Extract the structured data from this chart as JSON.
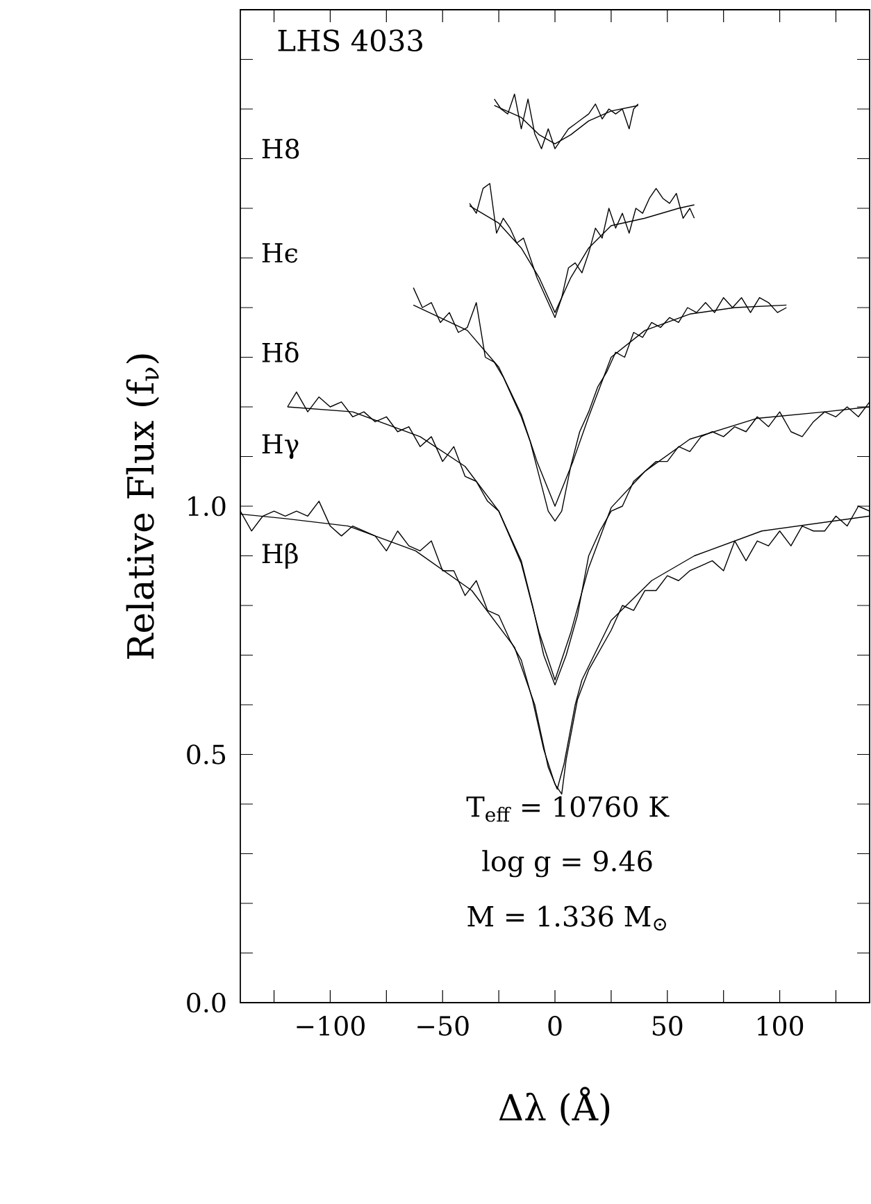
{
  "chart_data": {
    "type": "line",
    "title": "LHS 4033",
    "xlabel": "Δλ (Å)",
    "ylabel": "Relative Flux (f$_{ν}$)",
    "xlim": [
      -140,
      140
    ],
    "ylim": [
      0,
      2.0
    ],
    "xticks": [
      {
        "value": -125,
        "label": null
      },
      {
        "value": -100,
        "label": "−100"
      },
      {
        "value": -75,
        "label": null
      },
      {
        "value": -50,
        "label": "−50"
      },
      {
        "value": -25,
        "label": null
      },
      0,
      {
        "value": 25,
        "label": null
      },
      50,
      {
        "value": 75,
        "label": null
      },
      100,
      {
        "value": 125,
        "label": null
      }
    ],
    "yticks": [
      {
        "value": 0,
        "label": "0.0"
      },
      {
        "value": 0.1,
        "label": null
      },
      {
        "value": 0.2,
        "label": null
      },
      {
        "value": 0.3,
        "label": null
      },
      {
        "value": 0.4,
        "label": null
      },
      0.5,
      {
        "value": 0.6,
        "label": null
      },
      {
        "value": 0.7,
        "label": null
      },
      {
        "value": 0.8,
        "label": null
      },
      {
        "value": 0.9,
        "label": null
      },
      {
        "value": 1,
        "label": "1.0"
      },
      {
        "value": 1.1,
        "label": null
      },
      {
        "value": 1.2,
        "label": null
      },
      {
        "value": 1.3,
        "label": null
      },
      {
        "value": 1.4,
        "label": null
      },
      {
        "value": 1.5,
        "label": null
      },
      {
        "value": 1.6,
        "label": null
      },
      {
        "value": 1.7,
        "label": null
      },
      {
        "value": 1.8,
        "label": null
      },
      {
        "value": 1.9,
        "label": null
      }
    ],
    "marker": "none",
    "series": [
      {
        "color": "#000000",
        "x": [
          -140,
          -135,
          -130,
          -125,
          -120,
          -115,
          -110,
          -105,
          -100,
          -95,
          -90,
          -85,
          -80,
          -75,
          -70,
          -65,
          -60,
          -55,
          -50,
          -45,
          -40,
          -35,
          -30,
          -25,
          -20,
          -15,
          -10,
          -5,
          0,
          3,
          5,
          10,
          15,
          20,
          25,
          30,
          35,
          40,
          45,
          50,
          55,
          60,
          65,
          70,
          75,
          80,
          85,
          90,
          95,
          100,
          105,
          110,
          115,
          120,
          125,
          130,
          135,
          140
        ],
        "values": [
          0.99,
          0.95,
          0.98,
          0.99,
          0.98,
          0.99,
          0.98,
          1.01,
          0.96,
          0.94,
          0.96,
          0.95,
          0.94,
          0.91,
          0.95,
          0.92,
          0.91,
          0.93,
          0.87,
          0.87,
          0.82,
          0.85,
          0.79,
          0.78,
          0.73,
          0.69,
          0.61,
          0.51,
          0.44,
          0.42,
          0.49,
          0.61,
          0.67,
          0.71,
          0.75,
          0.8,
          0.79,
          0.83,
          0.83,
          0.86,
          0.85,
          0.87,
          0.88,
          0.89,
          0.87,
          0.93,
          0.89,
          0.93,
          0.92,
          0.95,
          0.92,
          0.96,
          0.95,
          0.95,
          0.98,
          0.96,
          1.0,
          0.99
        ]
      },
      {
        "color": "#000000",
        "x": [
          -140,
          -120,
          -92,
          -62,
          -37,
          -18,
          -9,
          -3,
          1,
          4,
          9,
          12,
          25,
          43,
          62,
          92,
          140
        ],
        "values": [
          0.984,
          0.975,
          0.96,
          0.91,
          0.83,
          0.716,
          0.6,
          0.474,
          0.43,
          0.48,
          0.6,
          0.65,
          0.77,
          0.85,
          0.9,
          0.95,
          0.98
        ]
      },
      {
        "color": "#000000",
        "x": [
          -119,
          -115,
          -110,
          -105,
          -100,
          -95,
          -90,
          -85,
          -80,
          -75,
          -70,
          -65,
          -60,
          -55,
          -50,
          -45,
          -40,
          -35,
          -30,
          -25,
          -20,
          -15,
          -10,
          -5,
          0,
          5,
          10,
          15,
          20,
          25,
          30,
          35,
          40,
          45,
          50,
          55,
          60,
          65,
          70,
          75,
          80,
          85,
          90,
          95,
          100,
          105,
          110,
          115,
          120,
          125,
          130,
          135,
          140
        ],
        "values": [
          1.2,
          1.23,
          1.19,
          1.22,
          1.2,
          1.21,
          1.18,
          1.19,
          1.17,
          1.18,
          1.15,
          1.16,
          1.12,
          1.14,
          1.09,
          1.12,
          1.06,
          1.05,
          1.01,
          0.99,
          0.94,
          0.89,
          0.8,
          0.7,
          0.64,
          0.7,
          0.78,
          0.9,
          0.95,
          0.99,
          1.0,
          1.05,
          1.07,
          1.09,
          1.09,
          1.12,
          1.11,
          1.14,
          1.15,
          1.14,
          1.16,
          1.15,
          1.18,
          1.16,
          1.19,
          1.15,
          1.14,
          1.17,
          1.19,
          1.18,
          1.2,
          1.18,
          1.21
        ]
      },
      {
        "color": "#000000",
        "x": [
          -119,
          -90,
          -60,
          -40,
          -25,
          -15,
          -7,
          0,
          7,
          15,
          25,
          40,
          60,
          90,
          120,
          140
        ],
        "values": [
          1.2,
          1.19,
          1.14,
          1.08,
          0.99,
          0.885,
          0.745,
          0.65,
          0.745,
          0.876,
          0.997,
          1.07,
          1.135,
          1.177,
          1.19,
          1.2
        ]
      },
      {
        "color": "#000000",
        "x": [
          -63,
          -59,
          -55,
          -51,
          -47,
          -43,
          -39,
          -35,
          -31,
          -27,
          -23,
          -19,
          -15,
          -11,
          -7,
          -3,
          0,
          3,
          7,
          11,
          15,
          19,
          23,
          27,
          31,
          35,
          39,
          43,
          47,
          51,
          55,
          59,
          63,
          67,
          71,
          75,
          79,
          83,
          87,
          91,
          95,
          99,
          103
        ],
        "values": [
          1.44,
          1.4,
          1.41,
          1.37,
          1.39,
          1.35,
          1.36,
          1.41,
          1.3,
          1.29,
          1.26,
          1.22,
          1.18,
          1.13,
          1.06,
          0.99,
          0.97,
          0.99,
          1.08,
          1.15,
          1.19,
          1.24,
          1.27,
          1.31,
          1.3,
          1.35,
          1.34,
          1.37,
          1.36,
          1.38,
          1.37,
          1.4,
          1.39,
          1.41,
          1.39,
          1.42,
          1.4,
          1.42,
          1.39,
          1.42,
          1.41,
          1.39,
          1.4
        ]
      },
      {
        "color": "#000000",
        "x": [
          -63,
          -39,
          -25,
          -15,
          -8,
          0,
          8,
          15,
          25,
          40,
          60,
          80,
          103
        ],
        "values": [
          1.405,
          1.354,
          1.28,
          1.185,
          1.09,
          1.0,
          1.09,
          1.18,
          1.3,
          1.354,
          1.387,
          1.4,
          1.405
        ]
      },
      {
        "color": "#000000",
        "x": [
          -38,
          -35,
          -32,
          -29,
          -26,
          -23,
          -20,
          -17,
          -14,
          -11,
          -8,
          -5,
          -2,
          0,
          3,
          6,
          9,
          12,
          15,
          18,
          21,
          24,
          27,
          30,
          33,
          36,
          39,
          42,
          45,
          48,
          51,
          54,
          57,
          60,
          62
        ],
        "values": [
          1.61,
          1.59,
          1.64,
          1.65,
          1.55,
          1.58,
          1.56,
          1.53,
          1.54,
          1.5,
          1.46,
          1.43,
          1.4,
          1.38,
          1.42,
          1.48,
          1.49,
          1.47,
          1.51,
          1.56,
          1.54,
          1.6,
          1.56,
          1.59,
          1.55,
          1.6,
          1.59,
          1.62,
          1.64,
          1.62,
          1.61,
          1.63,
          1.58,
          1.6,
          1.58
        ]
      },
      {
        "color": "#000000",
        "x": [
          -38,
          -25,
          -15,
          -7,
          0,
          7,
          15,
          25,
          40,
          55,
          62
        ],
        "values": [
          1.605,
          1.57,
          1.52,
          1.46,
          1.39,
          1.46,
          1.52,
          1.565,
          1.58,
          1.6,
          1.607
        ]
      },
      {
        "color": "#000000",
        "x": [
          -27,
          -24,
          -21,
          -18,
          -15,
          -12,
          -9,
          -6,
          -3,
          0,
          3,
          6,
          9,
          12,
          15,
          18,
          21,
          24,
          27,
          30,
          33,
          35,
          37
        ],
        "values": [
          1.82,
          1.8,
          1.79,
          1.83,
          1.76,
          1.82,
          1.75,
          1.72,
          1.76,
          1.72,
          1.74,
          1.76,
          1.77,
          1.78,
          1.79,
          1.81,
          1.78,
          1.8,
          1.79,
          1.8,
          1.76,
          1.8,
          1.81
        ]
      },
      {
        "color": "#000000",
        "x": [
          -27,
          -15,
          -7,
          0,
          7,
          15,
          25,
          37
        ],
        "values": [
          1.807,
          1.783,
          1.748,
          1.73,
          1.748,
          1.776,
          1.796,
          1.807
        ]
      }
    ],
    "annotations": [
      "H8",
      "Hϵ",
      "Hδ",
      "Hγ",
      "Hβ",
      "T$_{eff}$ = 10760 K",
      "log g = 9.46",
      "M = 1.336 M$_{⊙}$"
    ]
  }
}
